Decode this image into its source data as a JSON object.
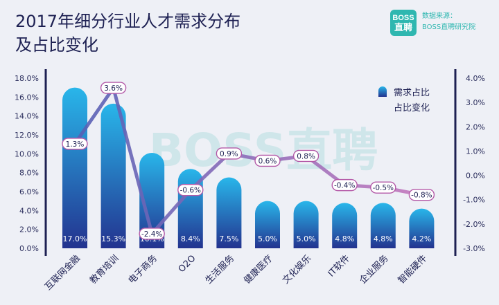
{
  "header": {
    "title": "2017年细分行业人才需求分布\n及占比变化",
    "brand_line1": "BOSS",
    "brand_line2": "直聘",
    "source_label": "数据来源：",
    "source_value": "BOSS直聘研究院"
  },
  "watermark": "BOSS直聘",
  "colors": {
    "background": "#eef0f6",
    "title": "#1d2052",
    "accent": "#2fb7b0",
    "bar_top": "#29b6ea",
    "bar_bottom": "#23338f",
    "line_start": "#5660b5",
    "line_end": "#c478bd",
    "axis": "#1d2052"
  },
  "chart_data": {
    "type": "bar",
    "title": "2017年细分行业人才需求分布及占比变化",
    "categories": [
      "互联网金融",
      "教育培训",
      "电子商务",
      "O2O",
      "生活服务",
      "健康医疗",
      "文化娱乐",
      "IT软件",
      "企业服务",
      "智能硬件"
    ],
    "series": [
      {
        "name": "需求占比",
        "type": "bar",
        "axis": "left",
        "values": [
          17.0,
          15.3,
          10.1,
          8.4,
          7.5,
          5.0,
          5.0,
          4.8,
          4.8,
          4.2
        ],
        "labels": [
          "17.0%",
          "15.3%",
          "10.1%",
          "8.4%",
          "7.5%",
          "5.0%",
          "5.0%",
          "4.8%",
          "4.8%",
          "4.2%"
        ]
      },
      {
        "name": "占比变化",
        "type": "line",
        "axis": "right",
        "values": [
          1.3,
          3.6,
          -2.4,
          -0.6,
          0.9,
          0.6,
          0.8,
          -0.4,
          -0.5,
          -0.8
        ],
        "labels": [
          "1.3%",
          "3.6%",
          "-2.4%",
          "-0.6%",
          "0.9%",
          "0.6%",
          "0.8%",
          "-0.4%",
          "-0.5%",
          "-0.8%"
        ]
      }
    ],
    "y_left": {
      "range": [
        0,
        18
      ],
      "ticks": [
        0,
        2,
        4,
        6,
        8,
        10,
        12,
        14,
        16,
        18
      ],
      "tick_labels": [
        "0.0%",
        "2.0%",
        "4.0%",
        "6.0%",
        "8.0%",
        "10.0%",
        "12.0%",
        "14.0%",
        "16.0%",
        "18.0%"
      ]
    },
    "y_right": {
      "range": [
        -3,
        4
      ],
      "ticks": [
        -3,
        -2,
        -1,
        0,
        1,
        2,
        3,
        4
      ],
      "tick_labels": [
        "-3.0%",
        "-2.0%",
        "-1.0%",
        "0.0%",
        "1.0%",
        "2.0%",
        "3.0%",
        "4.0%"
      ]
    },
    "grid": false,
    "legend": {
      "position": "top-right",
      "items": [
        "需求占比",
        "占比变化"
      ]
    }
  }
}
